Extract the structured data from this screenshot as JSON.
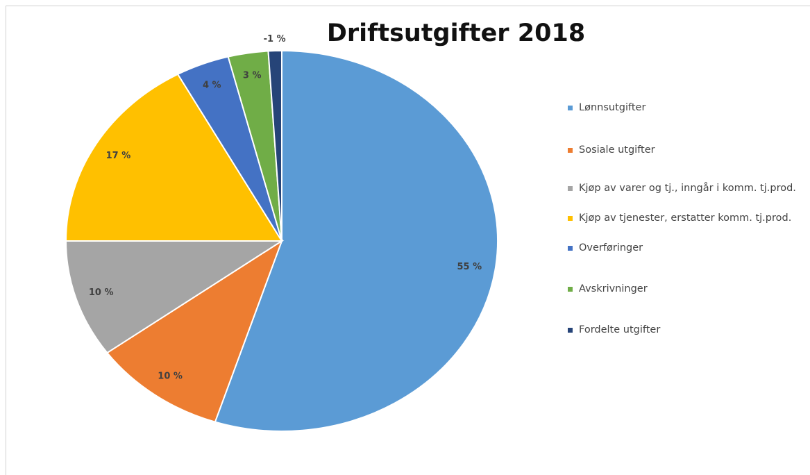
{
  "chart_data": {
    "type": "pie",
    "title": "Driftsutgifter 2018",
    "categories": [
      "Lønnsutgifter",
      "Sosiale utgifter",
      "Kjøp av varer og tj., inngår i komm. tj.prod.",
      "Kjøp av tjenester, erstatter komm. tj.prod.",
      "Overføringer",
      "Avskrivninger",
      "Fordelte utgifter"
    ],
    "values": [
      55,
      10,
      10,
      17,
      4,
      3,
      -1
    ],
    "value_labels": [
      "55 %",
      "10 %",
      "10 %",
      "17 %",
      "4 %",
      "3 %",
      "-1 %"
    ],
    "colors": [
      "#5b9bd5",
      "#ed7d31",
      "#a5a5a5",
      "#ffc000",
      "#4472c4",
      "#70ad47",
      "#264478"
    ],
    "legend": "right"
  }
}
